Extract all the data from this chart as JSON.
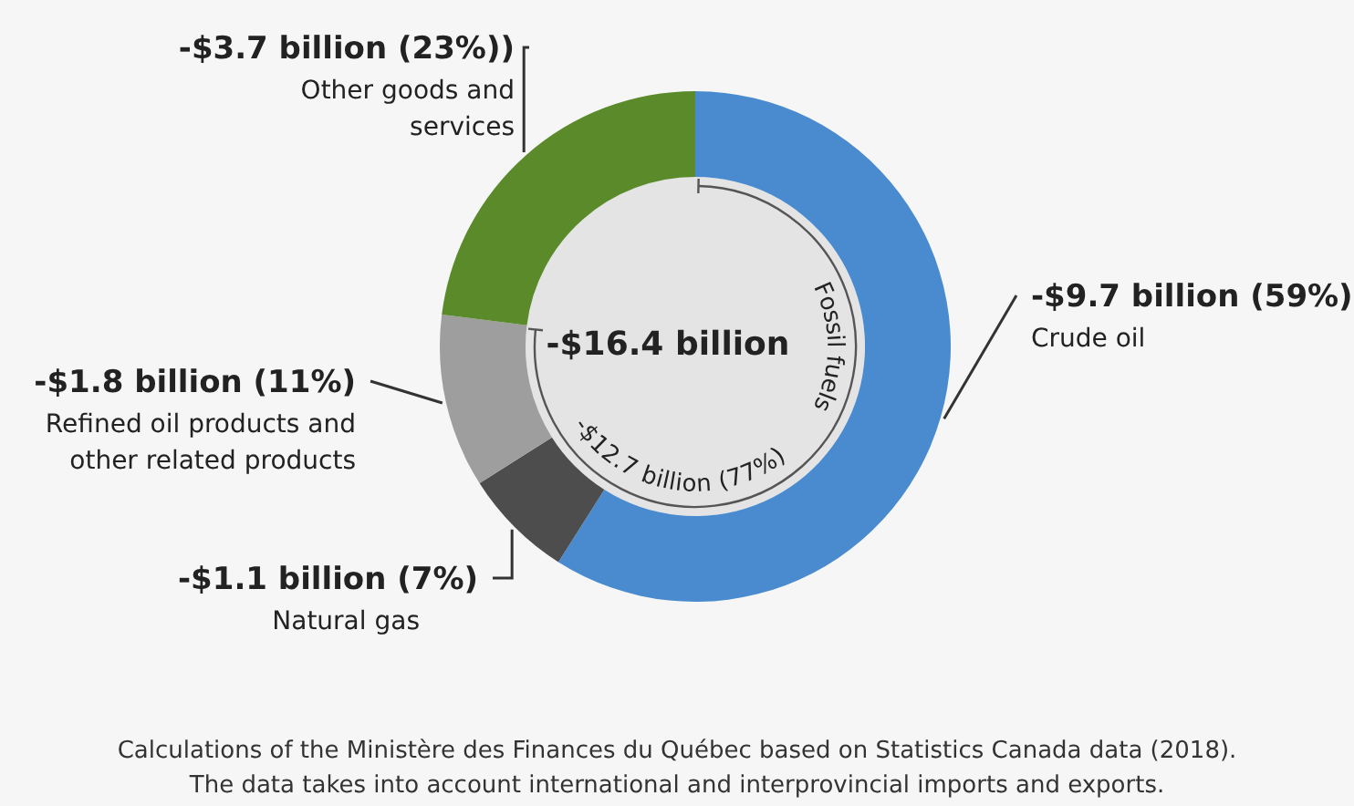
{
  "chart_data": {
    "type": "donut",
    "categories": [
      "Crude oil",
      "Natural gas",
      "Refined oil products and other related products",
      "Other goods and services"
    ],
    "values": [
      59,
      7,
      11,
      23
    ],
    "colors": [
      "#4a8bd0",
      "#4d4d4d",
      "#9e9e9e",
      "#5b8a2b"
    ],
    "value_labels": [
      "-$9.7 billion (59%)",
      "-$1.1 billion (7%)",
      "-$1.8 billion (11%)",
      "-$3.7 billion (23%))"
    ],
    "legend": false,
    "annotations": [
      "-$16.4 billion",
      "-$12.7 billion (77%)",
      "Fossil fuels",
      "Calculations of the Ministère des Finances du Québec based on Statistics Canada data (2018).",
      "The data takes into account international and interprovincial imports and exports."
    ]
  }
}
